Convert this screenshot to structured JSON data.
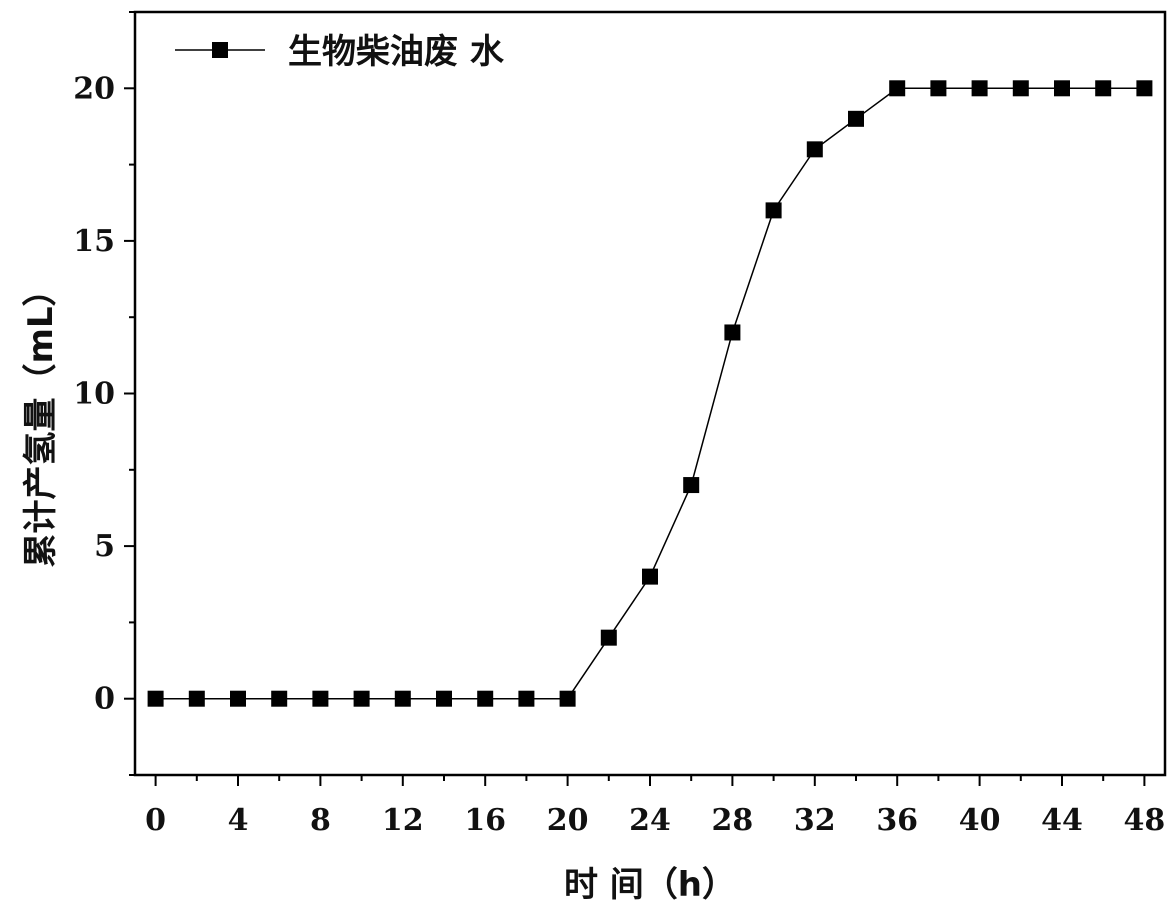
{
  "chart_data": {
    "type": "line",
    "xlabel": "时 间（h）",
    "ylabel": "累计产氢量（mL）",
    "xlim": [
      -1,
      49
    ],
    "ylim": [
      -2.5,
      22.5
    ],
    "xticks": [
      0,
      4,
      8,
      12,
      16,
      20,
      24,
      28,
      32,
      36,
      40,
      44,
      48
    ],
    "yticks": [
      0,
      5,
      10,
      15,
      20
    ],
    "legend_position": "top-left",
    "grid": false,
    "series": [
      {
        "name": "生物柴油废 水",
        "color": "#000000",
        "marker": "square",
        "x": [
          0,
          2,
          4,
          6,
          8,
          10,
          12,
          14,
          16,
          18,
          20,
          22,
          24,
          26,
          28,
          30,
          32,
          34,
          36,
          38,
          40,
          42,
          44,
          46,
          48
        ],
        "y": [
          0,
          0,
          0,
          0,
          0,
          0,
          0,
          0,
          0,
          0,
          0,
          2,
          4,
          7,
          12,
          16,
          18,
          19,
          20,
          20,
          20,
          20,
          20,
          20,
          20
        ]
      }
    ]
  }
}
